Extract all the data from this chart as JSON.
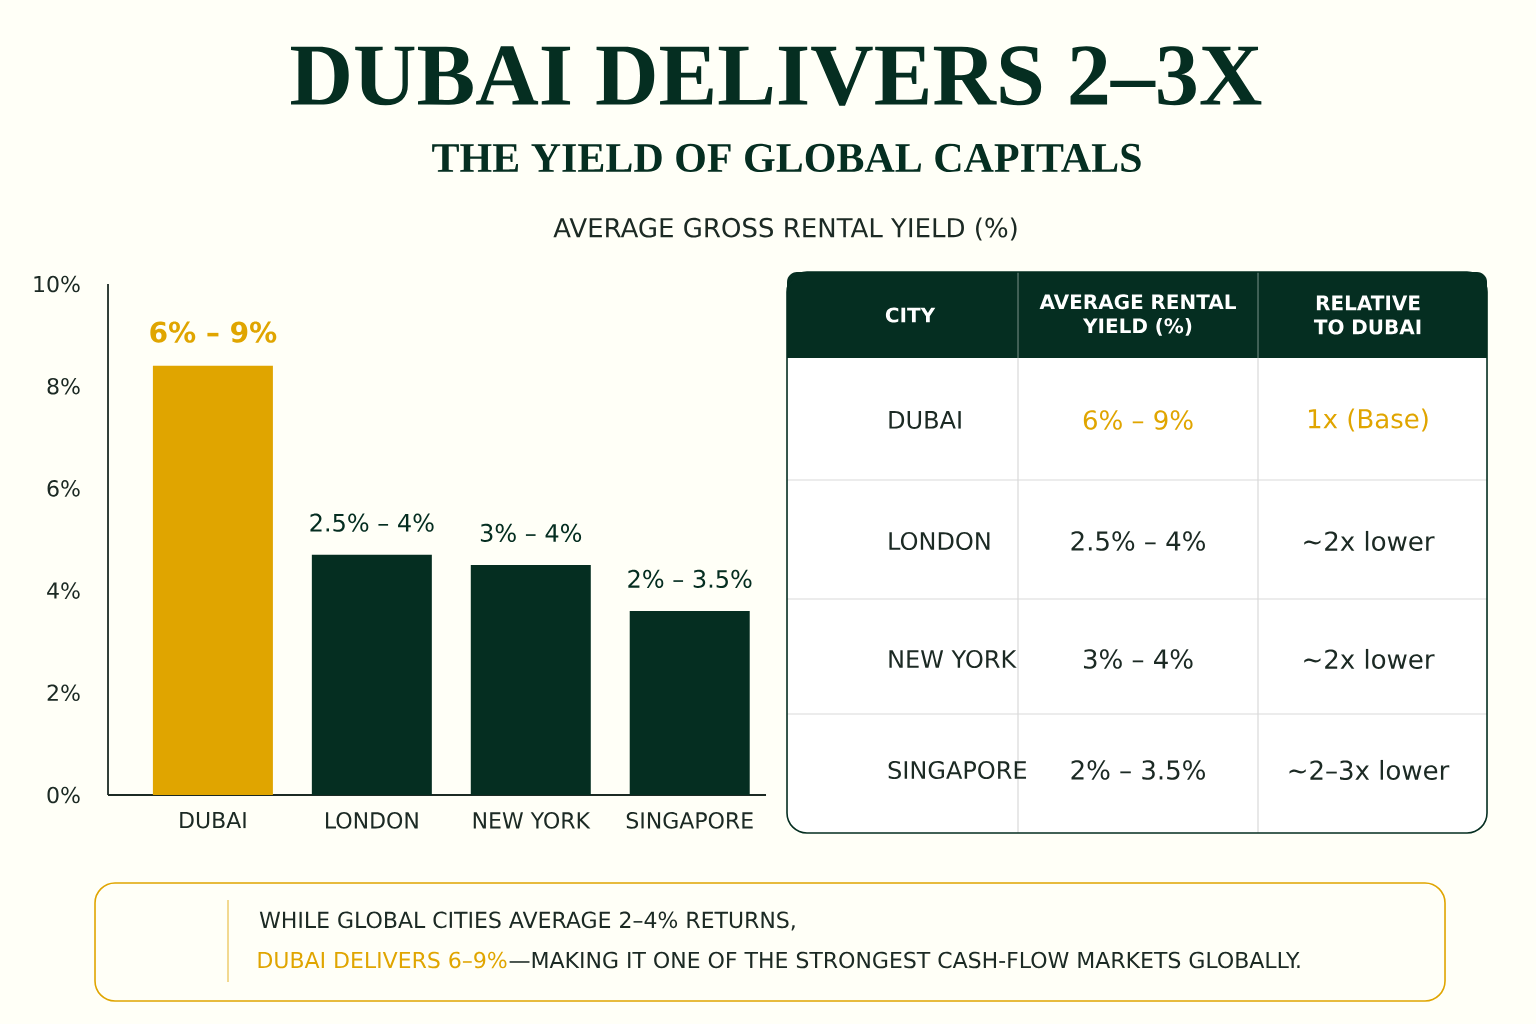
{
  "chart_data": [
    {
      "type": "bar",
      "title": "DUBAI DELIVERS 2–3X",
      "subtitle": "THE YIELD OF GLOBAL CAPITALS",
      "categories": [
        "DUBAI",
        "LONDON",
        "NEW YORK",
        "SINGAPORE"
      ],
      "values": [
        8.4,
        4.7,
        4.5,
        3.6
      ],
      "colors": [
        "#e0a500",
        "#052e21",
        "#052e21",
        "#052e21"
      ],
      "ylim": [
        0,
        10
      ],
      "yticks": [
        {
          "value": 0,
          "label": "0%"
        },
        {
          "value": 2,
          "label": "2%"
        },
        {
          "value": 4,
          "label": "4%"
        },
        {
          "value": 6,
          "label": "6%"
        },
        {
          "value": 8,
          "label": "8%"
        },
        {
          "value": 10,
          "label": "10%"
        }
      ],
      "annotations": [
        "AVERAGE GROSS RENTAL YIELD (%)",
        "WHILE GLOBAL CITIES AVERAGE 2–4% RETURNS,",
        "DUBAI DELIVERS 6–9%",
        "—MAKING IT ONE OF THE STRONGEST CASH-FLOW MARKETS GLOBALLY.",
        {
          "text": "6% – 9%",
          "x": "DUBAI",
          "y": 8.4
        },
        {
          "text": "2.5% – 4%",
          "x": "LONDON",
          "y": 4.7
        },
        {
          "text": "3% – 4%",
          "x": "NEW YORK",
          "y": 4.5
        },
        {
          "text": "2% – 3.5%",
          "x": "SINGAPORE",
          "y": 3.6
        }
      ]
    },
    {
      "type": "other",
      "annotations": [
        "CITY",
        "AVERAGE RENTAL YIELD (%)",
        "RELATIVE TO DUBAI",
        "DUBAI",
        "6% – 9%",
        "1x (Base)",
        "LONDON",
        "2.5% – 4%",
        "~2x lower",
        "NEW YORK",
        "3% – 4%",
        "~2x lower",
        "SINGAPORE",
        "2% – 3.5%",
        "~2–3x lower"
      ]
    }
  ]
}
